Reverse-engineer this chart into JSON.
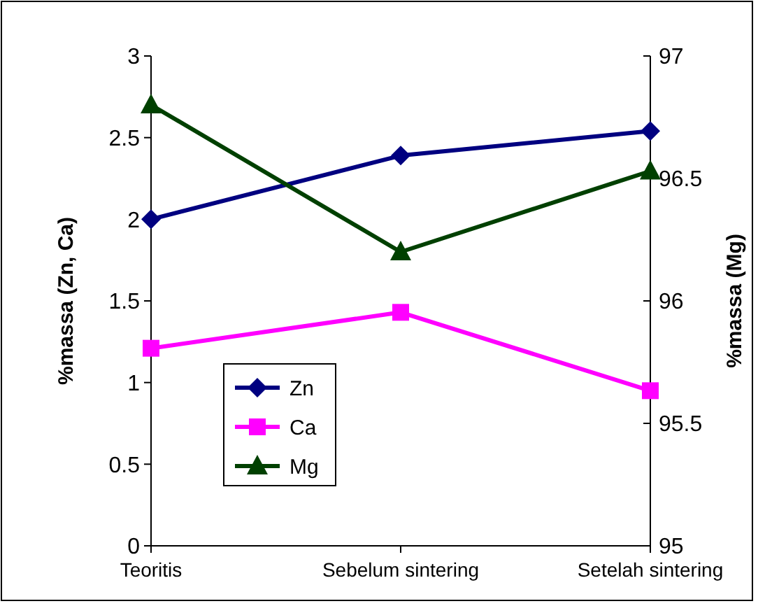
{
  "chart_data": {
    "type": "line",
    "categories": [
      "Teoritis",
      "Sebelum sintering",
      "Setelah sintering"
    ],
    "ylabel": "%massa (Zn, Ca)",
    "y2label": "%massa (Mg)",
    "ylim": [
      0,
      3
    ],
    "yticks": [
      0,
      0.5,
      1,
      1.5,
      2,
      2.5,
      3
    ],
    "y2lim": [
      95,
      97
    ],
    "y2ticks": [
      95,
      95.5,
      96,
      96.5,
      97
    ],
    "legend": "left",
    "grid": false,
    "series": [
      {
        "name": "Zn",
        "color": "#000080",
        "marker": "diamond",
        "values": [
          2.0,
          2.39,
          2.54
        ]
      },
      {
        "name": "Ca",
        "color": "#ff00ff",
        "marker": "square",
        "values": [
          1.21,
          1.43,
          0.95
        ]
      },
      {
        "name": "Mg",
        "color": "#004000",
        "marker": "triangle",
        "axis": "y2",
        "values": [
          96.8,
          96.2,
          96.53
        ]
      }
    ]
  }
}
